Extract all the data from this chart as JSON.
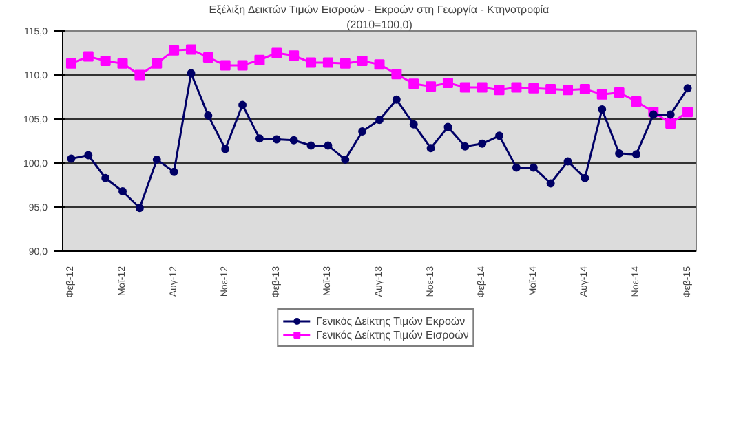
{
  "chart_data": {
    "type": "line",
    "title": "Εξέλιξη Δεικτών Τιμών Εισροών - Εκροών στη Γεωργία - Κτηνοτροφία",
    "subtitle": "(2010=100,0)",
    "categories": [
      "Φεβ-12",
      null,
      null,
      "Μαϊ-12",
      null,
      null,
      "Αυγ-12",
      null,
      null,
      "Νοε-12",
      null,
      null,
      "Φεβ-13",
      null,
      null,
      "Μαϊ-13",
      null,
      null,
      "Αυγ-13",
      null,
      null,
      "Νοε-13",
      null,
      null,
      "Φεβ-14",
      null,
      null,
      "Μαϊ-14",
      null,
      null,
      "Αυγ-14",
      null,
      null,
      "Νοε-14",
      null,
      null,
      "Φεβ-15"
    ],
    "series": [
      {
        "name": "Γενικός Δείκτης Τιμών Εκροών",
        "color": "#000066",
        "marker": "circle",
        "values": [
          100.5,
          100.9,
          98.3,
          96.8,
          94.9,
          100.4,
          99.0,
          110.2,
          105.4,
          101.6,
          106.6,
          102.8,
          102.7,
          102.6,
          102.0,
          102.0,
          100.4,
          103.6,
          104.9,
          107.2,
          104.4,
          101.7,
          104.1,
          101.9,
          102.2,
          103.1,
          99.5,
          99.5,
          97.7,
          100.2,
          98.3,
          106.1,
          101.1,
          101.0,
          105.5,
          105.5,
          108.5
        ]
      },
      {
        "name": "Γενικός Δείκτης Τιμών Εισροών",
        "color": "#ff00ff",
        "marker": "square",
        "values": [
          111.3,
          112.1,
          111.6,
          111.3,
          110.0,
          111.3,
          112.8,
          112.9,
          112.0,
          111.1,
          111.1,
          111.7,
          112.5,
          112.2,
          111.4,
          111.4,
          111.3,
          111.6,
          111.2,
          110.1,
          109.0,
          108.7,
          109.1,
          108.6,
          108.6,
          108.3,
          108.6,
          108.5,
          108.4,
          108.3,
          108.4,
          107.8,
          108.0,
          107.0,
          105.8,
          104.5,
          105.8
        ]
      }
    ],
    "ylim": [
      90,
      115
    ],
    "yticks": [
      {
        "value": 90,
        "label": "90,0"
      },
      {
        "value": 95,
        "label": "95,0"
      },
      {
        "value": 100,
        "label": "100,0"
      },
      {
        "value": 105,
        "label": "105,0"
      },
      {
        "value": 110,
        "label": "110,0"
      },
      {
        "value": 115,
        "label": "115,0"
      }
    ],
    "grid": "y",
    "legend": "bottom"
  }
}
